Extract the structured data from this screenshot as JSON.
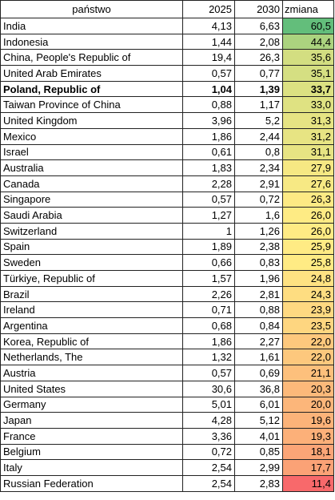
{
  "table": {
    "header": [
      "państwo",
      "2025",
      "2030",
      "zmiana"
    ],
    "rows": [
      [
        "India",
        "4,13",
        "6,63",
        "60,5"
      ],
      [
        "Indonesia",
        "1,44",
        "2,08",
        "44,4"
      ],
      [
        "China, People's Republic of",
        "19,4",
        "26,3",
        "35,6"
      ],
      [
        "United Arab Emirates",
        "0,57",
        "0,77",
        "35,1"
      ],
      [
        "Poland, Republic of",
        "1,04",
        "1,39",
        "33,7"
      ],
      [
        "Taiwan Province of China",
        "0,88",
        "1,17",
        "33,0"
      ],
      [
        "United Kingdom",
        "3,96",
        "5,2",
        "31,3"
      ],
      [
        "Mexico",
        "1,86",
        "2,44",
        "31,2"
      ],
      [
        "Israel",
        "0,61",
        "0,8",
        "31,1"
      ],
      [
        "Australia",
        "1,83",
        "2,34",
        "27,9"
      ],
      [
        "Canada",
        "2,28",
        "2,91",
        "27,6"
      ],
      [
        "Singapore",
        "0,57",
        "0,72",
        "26,3"
      ],
      [
        "Saudi Arabia",
        "1,27",
        "1,6",
        "26,0"
      ],
      [
        "Switzerland",
        "1",
        "1,26",
        "26,0"
      ],
      [
        "Spain",
        "1,89",
        "2,38",
        "25,9"
      ],
      [
        "Sweden",
        "0,66",
        "0,83",
        "25,8"
      ],
      [
        "Türkiye, Republic of",
        "1,57",
        "1,96",
        "24,8"
      ],
      [
        "Brazil",
        "2,26",
        "2,81",
        "24,3"
      ],
      [
        "Ireland",
        "0,71",
        "0,88",
        "23,9"
      ],
      [
        "Argentina",
        "0,68",
        "0,84",
        "23,5"
      ],
      [
        "Korea, Republic of",
        "1,86",
        "2,27",
        "22,0"
      ],
      [
        "Netherlands, The",
        "1,32",
        "1,61",
        "22,0"
      ],
      [
        "Austria",
        "0,57",
        "0,69",
        "21,1"
      ],
      [
        "United States",
        "30,6",
        "36,8",
        "20,3"
      ],
      [
        "Germany",
        "5,01",
        "6,01",
        "20,0"
      ],
      [
        "Japan",
        "4,28",
        "5,12",
        "19,6"
      ],
      [
        "France",
        "3,36",
        "4,01",
        "19,3"
      ],
      [
        "Belgium",
        "0,72",
        "0,85",
        "18,1"
      ],
      [
        "Italy",
        "2,54",
        "2,99",
        "17,7"
      ],
      [
        "Russian Federation",
        "2,54",
        "2,83",
        "11,4"
      ]
    ],
    "bold_rows": [
      4
    ],
    "color_scale": [
      "#f8696b",
      "#ffeb84",
      "#63be7b"
    ]
  }
}
